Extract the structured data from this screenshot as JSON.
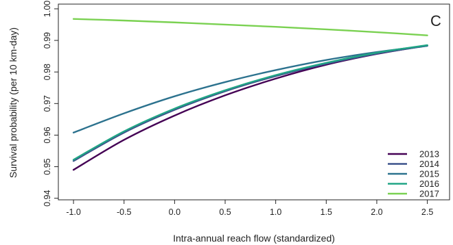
{
  "chart_data": {
    "type": "line",
    "panel_label": "C",
    "xlabel": "Intra-annual reach flow (standardized)",
    "ylabel": "Survival probability (per 10 km-day)",
    "xlim": [
      -1.15,
      2.72
    ],
    "ylim": [
      0.9395,
      1.0015
    ],
    "x_ticks": [
      -1.0,
      -0.5,
      0.0,
      0.5,
      1.0,
      1.5,
      2.0,
      2.5
    ],
    "x_tick_labels": [
      "-1.0",
      "-0.5",
      "0.0",
      "0.5",
      "1.0",
      "1.5",
      "2.0",
      "2.5"
    ],
    "y_ticks": [
      0.94,
      0.95,
      0.96,
      0.97,
      0.98,
      0.99,
      1.0
    ],
    "y_tick_labels": [
      "0.94",
      "0.95",
      "0.96",
      "0.97",
      "0.98",
      "0.99",
      "1.00"
    ],
    "legend_position": "bottom-right",
    "series": [
      {
        "name": "2013",
        "color": "#440154",
        "x": [
          -1.0,
          -0.5,
          0.0,
          0.5,
          1.0,
          1.5,
          2.0,
          2.5
        ],
        "y": [
          0.949,
          0.9585,
          0.9662,
          0.9726,
          0.9779,
          0.9823,
          0.9857,
          0.9884
        ]
      },
      {
        "name": "2014",
        "color": "#3b528b",
        "x": [
          -1.0,
          -0.5,
          0.0,
          0.5,
          1.0,
          1.5,
          2.0,
          2.5
        ],
        "y": [
          0.9518,
          0.9608,
          0.968,
          0.9739,
          0.9787,
          0.9826,
          0.9858,
          0.9883
        ]
      },
      {
        "name": "2015",
        "color": "#2c728e",
        "x": [
          -1.0,
          -0.5,
          0.0,
          0.5,
          1.0,
          1.5,
          2.0,
          2.5
        ],
        "y": [
          0.9608,
          0.9669,
          0.9723,
          0.9768,
          0.9806,
          0.9838,
          0.9863,
          0.9883
        ]
      },
      {
        "name": "2016",
        "color": "#21a585",
        "x": [
          -1.0,
          -0.5,
          0.0,
          0.5,
          1.0,
          1.5,
          2.0,
          2.5
        ],
        "y": [
          0.9522,
          0.9612,
          0.9684,
          0.9742,
          0.979,
          0.9829,
          0.9861,
          0.9885
        ]
      },
      {
        "name": "2017",
        "color": "#7ad151",
        "x": [
          -1.0,
          -0.5,
          0.0,
          0.5,
          1.0,
          1.5,
          2.0,
          2.5
        ],
        "y": [
          0.9968,
          0.9963,
          0.9957,
          0.995,
          0.9943,
          0.9935,
          0.9926,
          0.9916
        ]
      }
    ]
  }
}
